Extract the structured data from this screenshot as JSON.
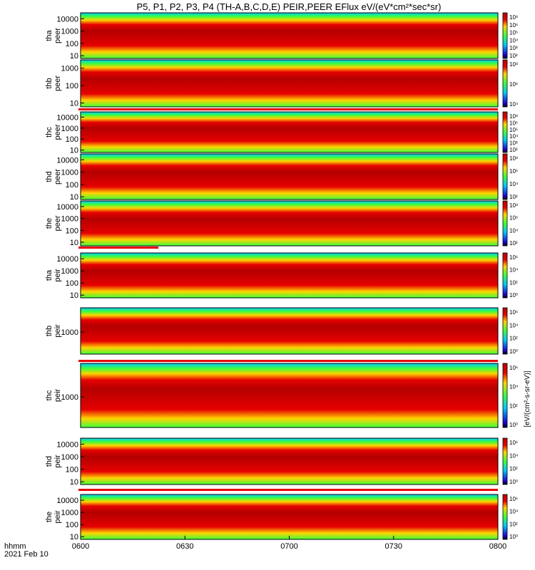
{
  "title": "P5, P1, P2, P3, P4 (TH-A,B,C,D,E) PEIR,PEER EFlux eV/(eV*cm²*sec*sr)",
  "colorbar_unit": "[eV/(cm²-s-sr-eV)]",
  "time_axis": {
    "row_label": "hhmm",
    "date_label": "2021 Feb 10",
    "ticks": [
      "0600",
      "0630",
      "0700",
      "0730",
      "0800"
    ],
    "range_minutes": [
      0,
      120
    ]
  },
  "chart_data": [
    {
      "type": "heatmap",
      "probe": "tha",
      "species": "peer",
      "panel_label": [
        "tha",
        "peer"
      ],
      "y_scale": "log",
      "y_ticks": [
        "10",
        "100",
        "1000",
        "10000"
      ],
      "ylim": [
        6,
        30000
      ],
      "colorbar_ticks": [
        "10²",
        "10³",
        "10⁴",
        "10⁵",
        "10⁶",
        "10⁸"
      ]
    },
    {
      "type": "heatmap",
      "probe": "thb",
      "species": "peer",
      "panel_label": [
        "thb",
        "peer"
      ],
      "y_scale": "log",
      "y_ticks": [
        "10",
        "100",
        "1000"
      ],
      "ylim": [
        6,
        3000
      ],
      "colorbar_ticks": [
        "10⁴",
        "10⁶",
        "10⁸"
      ]
    },
    {
      "type": "heatmap",
      "probe": "thc",
      "species": "peer",
      "panel_label": [
        "thc",
        "peer"
      ],
      "y_scale": "log",
      "y_ticks": [
        "10",
        "100",
        "1000",
        "10000"
      ],
      "ylim": [
        6,
        30000
      ],
      "colorbar_ticks": [
        "10²",
        "10³",
        "10⁴",
        "10⁵",
        "10⁶",
        "10⁸"
      ]
    },
    {
      "type": "heatmap",
      "probe": "thd",
      "species": "peer",
      "panel_label": [
        "thd",
        "peer"
      ],
      "y_scale": "log",
      "y_ticks": [
        "10",
        "100",
        "1000",
        "10000"
      ],
      "ylim": [
        6,
        30000
      ],
      "colorbar_ticks": [
        "10²",
        "10⁴",
        "10⁶",
        "10⁸"
      ]
    },
    {
      "type": "heatmap",
      "probe": "the",
      "species": "peer",
      "panel_label": [
        "the",
        "peer"
      ],
      "y_scale": "log",
      "y_ticks": [
        "10",
        "100",
        "1000",
        "10000"
      ],
      "ylim": [
        5,
        30000
      ],
      "colorbar_ticks": [
        "10²",
        "10⁴",
        "10⁶",
        "10⁸"
      ]
    },
    {
      "type": "heatmap",
      "probe": "tha",
      "species": "peir",
      "panel_label": [
        "tha",
        "peir"
      ],
      "y_scale": "log",
      "y_ticks": [
        "10",
        "100",
        "1000",
        "10000"
      ],
      "ylim": [
        6,
        30000
      ],
      "colorbar_ticks": [
        "10⁰",
        "10²",
        "10⁴",
        "10⁶"
      ]
    },
    {
      "type": "heatmap",
      "probe": "thb",
      "species": "peir",
      "panel_label": [
        "thb",
        "peir"
      ],
      "y_scale": "log",
      "y_ticks": [
        "1000"
      ],
      "ylim": [
        150,
        8000
      ],
      "colorbar_ticks": [
        "10⁰",
        "10²",
        "10⁴",
        "10⁶"
      ]
    },
    {
      "type": "heatmap",
      "probe": "thc",
      "species": "peir",
      "panel_label": [
        "thc",
        "peir"
      ],
      "y_scale": "log",
      "y_ticks": [
        "1000"
      ],
      "ylim": [
        150,
        8000
      ],
      "colorbar_ticks": [
        "10⁰",
        "10²",
        "10⁴",
        "10⁶"
      ]
    },
    {
      "type": "heatmap",
      "probe": "thd",
      "species": "peir",
      "panel_label": [
        "thd",
        "peir"
      ],
      "y_scale": "log",
      "y_ticks": [
        "10",
        "100",
        "1000",
        "10000"
      ],
      "ylim": [
        6,
        30000
      ],
      "colorbar_ticks": [
        "10⁰",
        "10²",
        "10⁴",
        "10⁶"
      ]
    },
    {
      "type": "heatmap",
      "probe": "the",
      "species": "peir",
      "panel_label": [
        "the",
        "peir"
      ],
      "y_scale": "log",
      "y_ticks": [
        "10",
        "100",
        "1000",
        "10000"
      ],
      "ylim": [
        6,
        30000
      ],
      "colorbar_ticks": [
        "10⁰",
        "10²",
        "10⁴",
        "10⁶"
      ]
    }
  ],
  "colors": {
    "low": "#1e00d6",
    "mid_low": "#00c8ff",
    "mid": "#3cff3c",
    "mid_high": "#ffd400",
    "high": "#e60000",
    "peak": "#b40000",
    "bar_red": "#e60000",
    "bar_black": "#000000"
  }
}
